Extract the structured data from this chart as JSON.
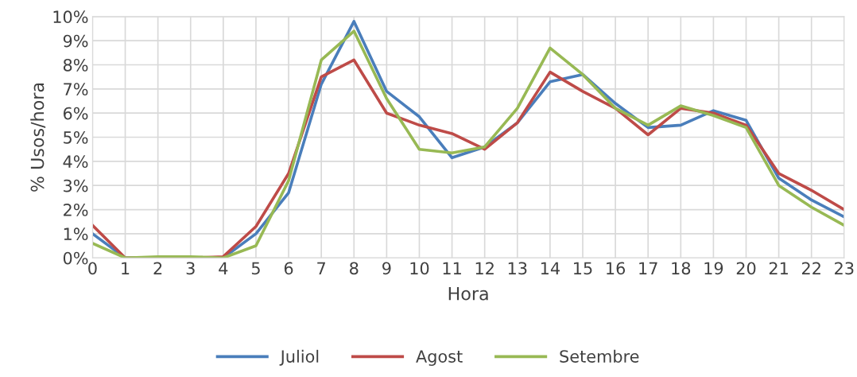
{
  "chart_data": {
    "type": "line",
    "xlabel": "Hora",
    "ylabel": "% Usos/hora",
    "x": [
      0,
      1,
      2,
      3,
      4,
      5,
      6,
      7,
      8,
      9,
      10,
      11,
      12,
      13,
      14,
      15,
      16,
      17,
      18,
      19,
      20,
      21,
      22,
      23
    ],
    "xlim": [
      0,
      23
    ],
    "xticks": [
      0,
      1,
      2,
      3,
      4,
      5,
      6,
      7,
      8,
      9,
      10,
      11,
      12,
      13,
      14,
      15,
      16,
      17,
      18,
      19,
      20,
      21,
      22,
      23
    ],
    "ylim": [
      0,
      10
    ],
    "yticks": [
      {
        "value": 0,
        "label": "0%"
      },
      {
        "value": 1,
        "label": "1%"
      },
      {
        "value": 2,
        "label": "2%"
      },
      {
        "value": 3,
        "label": "3%"
      },
      {
        "value": 4,
        "label": "4%"
      },
      {
        "value": 5,
        "label": "5%"
      },
      {
        "value": 6,
        "label": "6%"
      },
      {
        "value": 7,
        "label": "7%"
      },
      {
        "value": 8,
        "label": "8%"
      },
      {
        "value": 9,
        "label": "9%"
      },
      {
        "value": 10,
        "label": "10%"
      }
    ],
    "grid": true,
    "legend": "bottom",
    "marker": "none",
    "line_style": "solid",
    "series": [
      {
        "name": "Juliol",
        "color": "#4a7ebb",
        "values": [
          1.0,
          0,
          0,
          0,
          0,
          1.0,
          2.7,
          7.2,
          9.8,
          6.9,
          5.85,
          4.15,
          4.6,
          5.6,
          7.3,
          7.6,
          6.4,
          5.4,
          5.5,
          6.1,
          5.7,
          3.3,
          2.4,
          1.7
        ]
      },
      {
        "name": "Agost",
        "color": "#be4b48",
        "values": [
          1.35,
          0,
          0,
          0,
          0.05,
          1.3,
          3.5,
          7.5,
          8.2,
          6.0,
          5.5,
          5.15,
          4.5,
          5.6,
          7.7,
          6.9,
          6.2,
          5.1,
          6.2,
          6.0,
          5.5,
          3.5,
          2.8,
          2.0
        ]
      },
      {
        "name": "Setembre",
        "color": "#98b954",
        "values": [
          0.6,
          0,
          0.05,
          0.05,
          0,
          0.5,
          3.2,
          8.2,
          9.4,
          6.6,
          4.5,
          4.35,
          4.6,
          6.2,
          8.7,
          7.6,
          6.2,
          5.5,
          6.3,
          5.9,
          5.4,
          3.0,
          2.1,
          1.35
        ]
      }
    ]
  }
}
